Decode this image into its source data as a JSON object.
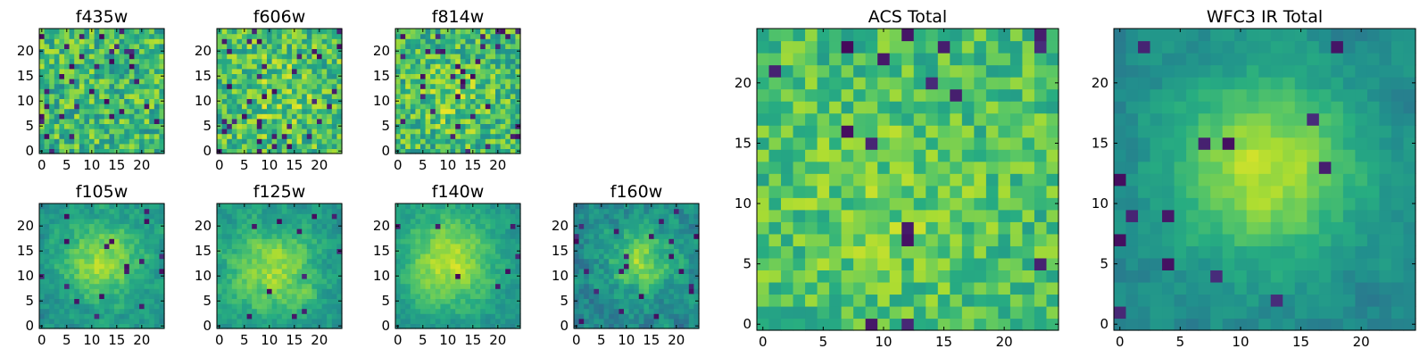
{
  "chart_data": [
    {
      "type": "heatmap",
      "title": "f435w",
      "grid_size": 25,
      "colormap": "viridis",
      "xticks": [
        0,
        5,
        10,
        15,
        20
      ],
      "yticks": [
        0,
        5,
        10,
        15,
        20
      ],
      "xlim": [
        -0.5,
        24.5
      ],
      "ylim": [
        -0.5,
        24.5
      ],
      "pattern": "noise",
      "seed": 11,
      "blob": {
        "cx": 12,
        "cy": 12,
        "sigma": 5,
        "amp": 0.0
      },
      "base": 0.68,
      "noise": 0.22,
      "dark_fraction": 0.06
    },
    {
      "type": "heatmap",
      "title": "f606w",
      "grid_size": 25,
      "colormap": "viridis",
      "xticks": [
        0,
        5,
        10,
        15,
        20
      ],
      "yticks": [
        0,
        5,
        10,
        15,
        20
      ],
      "xlim": [
        -0.5,
        24.5
      ],
      "ylim": [
        -0.5,
        24.5
      ],
      "pattern": "noise",
      "seed": 23,
      "blob": {
        "cx": 12,
        "cy": 12,
        "sigma": 5,
        "amp": 0.08
      },
      "base": 0.7,
      "noise": 0.22,
      "dark_fraction": 0.05
    },
    {
      "type": "heatmap",
      "title": "f814w",
      "grid_size": 25,
      "colormap": "viridis",
      "xticks": [
        0,
        5,
        10,
        15,
        20
      ],
      "yticks": [
        0,
        5,
        10,
        15,
        20
      ],
      "xlim": [
        -0.5,
        24.5
      ],
      "ylim": [
        -0.5,
        24.5
      ],
      "pattern": "noise",
      "seed": 37,
      "blob": {
        "cx": 11,
        "cy": 11,
        "sigma": 5,
        "amp": 0.1
      },
      "base": 0.68,
      "noise": 0.22,
      "dark_fraction": 0.06
    },
    {
      "type": "heatmap",
      "title": "f105w",
      "grid_size": 25,
      "colormap": "viridis",
      "xticks": [
        0,
        5,
        10,
        15,
        20
      ],
      "yticks": [
        0,
        5,
        10,
        15,
        20
      ],
      "xlim": [
        -0.5,
        24.5
      ],
      "ylim": [
        -0.5,
        24.5
      ],
      "pattern": "blob",
      "seed": 41,
      "blob": {
        "cx": 12,
        "cy": 13,
        "sigma": 5.5,
        "amp": 0.35
      },
      "base": 0.52,
      "noise": 0.16,
      "dark_fraction": 0.02
    },
    {
      "type": "heatmap",
      "title": "f125w",
      "grid_size": 25,
      "colormap": "viridis",
      "xticks": [
        0,
        5,
        10,
        15,
        20
      ],
      "yticks": [
        0,
        5,
        10,
        15,
        20
      ],
      "xlim": [
        -0.5,
        24.5
      ],
      "ylim": [
        -0.5,
        24.5
      ],
      "pattern": "blob",
      "seed": 53,
      "blob": {
        "cx": 11,
        "cy": 11,
        "sigma": 6,
        "amp": 0.3
      },
      "base": 0.55,
      "noise": 0.16,
      "dark_fraction": 0.02
    },
    {
      "type": "heatmap",
      "title": "f140w",
      "grid_size": 25,
      "colormap": "viridis",
      "xticks": [
        0,
        5,
        10,
        15,
        20
      ],
      "yticks": [
        0,
        5,
        10,
        15,
        20
      ],
      "xlim": [
        -0.5,
        24.5
      ],
      "ylim": [
        -0.5,
        24.5
      ],
      "pattern": "blob",
      "seed": 67,
      "blob": {
        "cx": 10,
        "cy": 13,
        "sigma": 6.5,
        "amp": 0.38
      },
      "base": 0.52,
      "noise": 0.13,
      "dark_fraction": 0.015
    },
    {
      "type": "heatmap",
      "title": "f160w",
      "grid_size": 25,
      "colormap": "viridis",
      "xticks": [
        0,
        5,
        10,
        15,
        20
      ],
      "yticks": [
        0,
        5,
        10,
        15,
        20
      ],
      "xlim": [
        -0.5,
        24.5
      ],
      "ylim": [
        -0.5,
        24.5
      ],
      "pattern": "blob",
      "seed": 79,
      "blob": {
        "cx": 13,
        "cy": 13,
        "sigma": 4.5,
        "amp": 0.35
      },
      "base": 0.48,
      "noise": 0.2,
      "dark_fraction": 0.05
    },
    {
      "type": "heatmap",
      "title": "ACS Total",
      "grid_size": 25,
      "colormap": "viridis",
      "xticks": [
        0,
        5,
        10,
        15,
        20
      ],
      "yticks": [
        0,
        5,
        10,
        15,
        20
      ],
      "xlim": [
        -0.5,
        24.5
      ],
      "ylim": [
        -0.5,
        24.5
      ],
      "pattern": "noise",
      "seed": 97,
      "blob": {
        "cx": 10,
        "cy": 10,
        "sigma": 6,
        "amp": 0.08
      },
      "base": 0.7,
      "noise": 0.16,
      "dark_fraction": 0.03
    },
    {
      "type": "heatmap",
      "title": "WFC3 IR Total",
      "grid_size": 25,
      "colormap": "viridis",
      "xticks": [
        0,
        5,
        10,
        15,
        20
      ],
      "yticks": [
        0,
        5,
        10,
        15,
        20
      ],
      "xlim": [
        -0.5,
        24.5
      ],
      "ylim": [
        -0.5,
        24.5
      ],
      "pattern": "blob",
      "seed": 113,
      "blob": {
        "cx": 12,
        "cy": 13,
        "sigma": 5.5,
        "amp": 0.42
      },
      "base": 0.47,
      "noise": 0.11,
      "dark_fraction": 0.03
    }
  ]
}
